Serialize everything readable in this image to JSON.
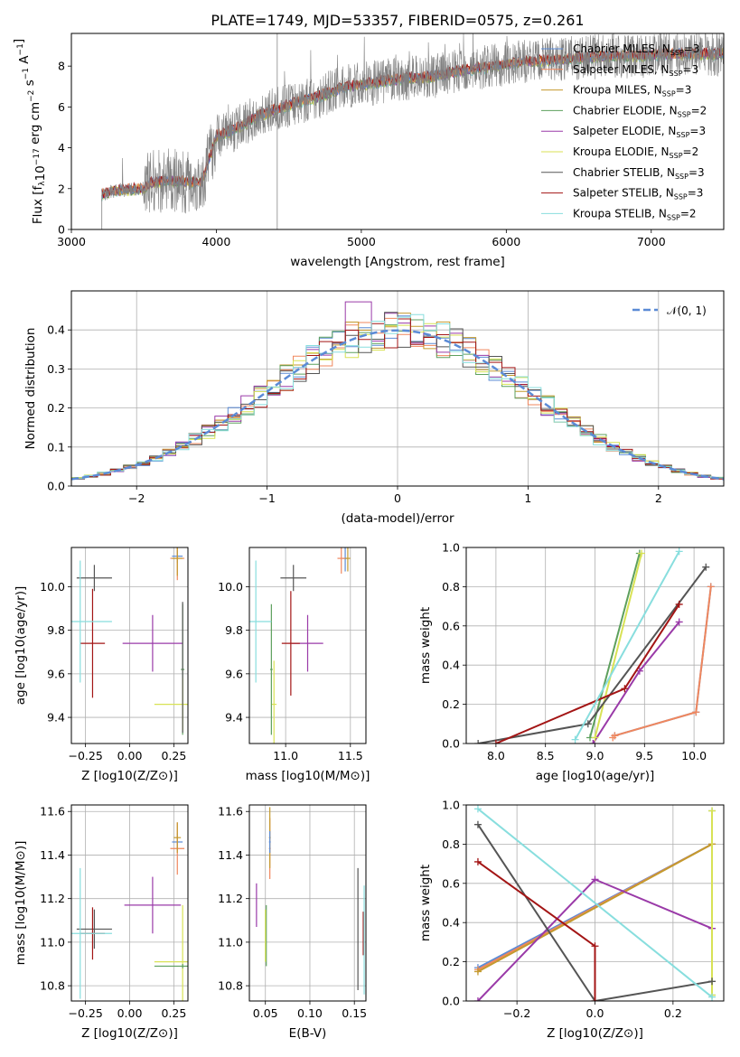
{
  "title": "PLATE=1749, MJD=53357, FIBERID=0575, z=0.261",
  "series": [
    {
      "name": "Chabrier MILES, N_SSP=3",
      "color": "#5b8bd6"
    },
    {
      "name": "Salpeter MILES, N_SSP=3",
      "color": "#f0875d"
    },
    {
      "name": "Kroupa MILES, N_SSP=3",
      "color": "#c49a2e"
    },
    {
      "name": "Chabrier ELODIE, N_SSP=2",
      "color": "#5da05d"
    },
    {
      "name": "Salpeter ELODIE, N_SSP=3",
      "color": "#9a3aa8"
    },
    {
      "name": "Kroupa ELODIE, N_SSP=2",
      "color": "#d8e255"
    },
    {
      "name": "Chabrier STELIB, N_SSP=3",
      "color": "#555555"
    },
    {
      "name": "Salpeter STELIB, N_SSP=3",
      "color": "#a31515"
    },
    {
      "name": "Kroupa STELIB, N_SSP=2",
      "color": "#88dede"
    }
  ],
  "legend": {
    "spectrum": [
      {
        "base": "Chabrier MILES, N",
        "sub": "SSP",
        "tail": "=3"
      },
      {
        "base": "Salpeter MILES, N",
        "sub": "SSP",
        "tail": "=3"
      },
      {
        "base": "Kroupa MILES, N",
        "sub": "SSP",
        "tail": "=3"
      },
      {
        "base": "Chabrier ELODIE, N",
        "sub": "SSP",
        "tail": "=2"
      },
      {
        "base": "Salpeter ELODIE, N",
        "sub": "SSP",
        "tail": "=3"
      },
      {
        "base": "Kroupa ELODIE, N",
        "sub": "SSP",
        "tail": "=2"
      },
      {
        "base": "Chabrier STELIB, N",
        "sub": "SSP",
        "tail": "=3"
      },
      {
        "base": "Salpeter STELIB, N",
        "sub": "SSP",
        "tail": "=3"
      },
      {
        "base": "Kroupa STELIB, N",
        "sub": "SSP",
        "tail": "=2"
      }
    ],
    "normal": "𝒩(0, 1)",
    "placement": "top-right"
  },
  "chart_data": [
    {
      "id": "spectrum",
      "type": "line",
      "grid": false,
      "xlabel": "wavelength [Angstrom, rest frame]",
      "ylabel": "Flux [f_λ 10^-17 erg cm^-2 s^-1 A^-1]",
      "xlim": [
        3000,
        7500
      ],
      "ylim": [
        0,
        9.6
      ],
      "xticks": [
        "3000",
        "4000",
        "5000",
        "6000",
        "7000"
      ],
      "yticks": [
        "0",
        "2",
        "4",
        "6",
        "8"
      ],
      "observed_color": "#808080",
      "data_start": 3210,
      "data_end": 7500,
      "continuum_x": [
        3210,
        3300,
        3500,
        3550,
        3700,
        3900,
        4000,
        4100,
        4300,
        4500,
        4700,
        4900,
        5100,
        5300,
        5500,
        5700,
        5900,
        6100,
        6300,
        6500,
        6700,
        6900,
        7100,
        7300,
        7500
      ],
      "continuum_y": [
        1.7,
        1.9,
        2.0,
        2.3,
        2.4,
        2.3,
        4.6,
        4.8,
        5.6,
        6.1,
        6.5,
        7.0,
        7.2,
        7.4,
        7.5,
        7.8,
        8.0,
        8.2,
        8.3,
        8.4,
        8.5,
        8.5,
        8.6,
        8.6,
        8.6
      ],
      "vline_x": 4420
    },
    {
      "id": "residuals",
      "type": "histogram",
      "grid": true,
      "xlabel": "(data-model)/error",
      "ylabel": "Normed distribution",
      "xlim": [
        -2.5,
        2.5
      ],
      "ylim": [
        0,
        0.5
      ],
      "xticks": [
        "−2",
        "−1",
        "0",
        "1",
        "2"
      ],
      "yticks": [
        "0.0",
        "0.1",
        "0.2",
        "0.3",
        "0.4"
      ],
      "bin_width": 0.1
    },
    {
      "id": "age_vs_Z",
      "type": "scatter",
      "grid": true,
      "xlabel": "Z [log10(Z/Z⊙)]",
      "ylabel": "age [log10(age/yr)]",
      "xlim": [
        -0.33,
        0.33
      ],
      "ylim": [
        9.28,
        10.18
      ],
      "xticks": [
        "−0.25",
        "0.00",
        "0.25"
      ],
      "yticks": [
        "9.4",
        "9.6",
        "9.8",
        "10.0"
      ],
      "points": [
        {
          "s": 0,
          "x": 0.27,
          "y": 10.14,
          "xe": 0.03,
          "ye": 0.03
        },
        {
          "s": 1,
          "x": 0.27,
          "y": 10.13,
          "xe": 0.04,
          "ye": 0.1
        },
        {
          "s": 2,
          "x": 0.27,
          "y": 10.13,
          "xe": 0.03,
          "ye": 0.08
        },
        {
          "s": 3,
          "x": 0.3,
          "y": 9.62,
          "xe": 0.01,
          "ye": 0.3
        },
        {
          "s": 4,
          "x": 0.13,
          "y": 9.74,
          "xe": 0.17,
          "ye": 0.13
        },
        {
          "s": 5,
          "x": 0.3,
          "y": 9.46,
          "xe": 0.16,
          "ye": 0.12
        },
        {
          "s": 6,
          "x": -0.2,
          "y": 10.04,
          "xe": 0.1,
          "ye": 0.06
        },
        {
          "s": 6,
          "x": 0.3,
          "y": 9.63,
          "xe": 0.0,
          "ye": 0.3
        },
        {
          "s": 7,
          "x": -0.21,
          "y": 9.74,
          "xe": 0.07,
          "ye": 0.25
        },
        {
          "s": 8,
          "x": -0.28,
          "y": 9.84,
          "xe": 0.18,
          "ye": 0.28
        }
      ]
    },
    {
      "id": "age_vs_mass",
      "type": "scatter",
      "grid": true,
      "xlabel": "mass [log10(M/M⊙)]",
      "ylabel": "",
      "xlim": [
        10.72,
        11.62
      ],
      "ylim": [
        9.28,
        10.18
      ],
      "xticks": [
        "11.0",
        "11.5"
      ],
      "yticks": [
        "9.4",
        "9.6",
        "9.8",
        "10.0"
      ],
      "points": [
        {
          "s": 0,
          "x": 11.46,
          "y": 10.13,
          "xe": 0.02,
          "ye": 0.06
        },
        {
          "s": 1,
          "x": 11.43,
          "y": 10.13,
          "xe": 0.03,
          "ye": 0.07
        },
        {
          "s": 2,
          "x": 11.48,
          "y": 10.13,
          "xe": 0.02,
          "ye": 0.06
        },
        {
          "s": 4,
          "x": 11.17,
          "y": 9.74,
          "xe": 0.12,
          "ye": 0.13
        },
        {
          "s": 5,
          "x": 10.91,
          "y": 9.46,
          "xe": 0.02,
          "ye": 0.2
        },
        {
          "s": 3,
          "x": 10.89,
          "y": 9.62,
          "xe": 0.01,
          "ye": 0.3
        },
        {
          "s": 6,
          "x": 11.06,
          "y": 10.04,
          "xe": 0.1,
          "ye": 0.06
        },
        {
          "s": 7,
          "x": 11.04,
          "y": 9.74,
          "xe": 0.07,
          "ye": 0.24
        },
        {
          "s": 8,
          "x": 10.77,
          "y": 9.84,
          "xe": 0.12,
          "ye": 0.28
        }
      ]
    },
    {
      "id": "massweight_vs_age",
      "type": "line",
      "grid": true,
      "xlabel": "age [log10(age/yr)]",
      "ylabel": "mass weight",
      "xlim": [
        7.7,
        10.3
      ],
      "ylim": [
        0,
        1
      ],
      "xticks": [
        "8.0",
        "8.5",
        "9.0",
        "9.5",
        "10.0"
      ],
      "yticks": [
        "0.0",
        "0.2",
        "0.4",
        "0.6",
        "0.8",
        "1.0"
      ],
      "lines": [
        {
          "s": 0,
          "x": [
            9.2,
            10.02,
            10.17
          ],
          "y": [
            0.04,
            0.16,
            0.8
          ]
        },
        {
          "s": 1,
          "x": 9.18,
          "y": 0.03
        },
        {
          "s": 1,
          "x": [
            9.2,
            10.02,
            10.17
          ],
          "y": [
            0.04,
            0.16,
            0.8
          ]
        },
        {
          "s": 3,
          "x": [
            8.95,
            9.45
          ],
          "y": [
            0.03,
            0.97
          ]
        },
        {
          "s": 4,
          "x": [
            8.98,
            9.45,
            9.85
          ],
          "y": [
            0.0,
            0.37,
            0.62
          ]
        },
        {
          "s": 5,
          "x": [
            9.0,
            9.47
          ],
          "y": [
            0.03,
            0.97
          ]
        },
        {
          "s": 6,
          "x": [
            7.82,
            8.93,
            10.12
          ],
          "y": [
            0.0,
            0.1,
            0.9
          ]
        },
        {
          "s": 7,
          "x": [
            8.0,
            9.3,
            9.85
          ],
          "y": [
            0.0,
            0.28,
            0.71
          ]
        },
        {
          "s": 8,
          "x": [
            8.8,
            9.85
          ],
          "y": [
            0.02,
            0.98
          ]
        }
      ]
    },
    {
      "id": "mass_vs_Z",
      "type": "scatter",
      "grid": true,
      "xlabel": "Z [log10(Z/Z⊙)]",
      "ylabel": "mass [log10(M/M⊙)]",
      "xlim": [
        -0.33,
        0.33
      ],
      "ylim": [
        10.73,
        11.63
      ],
      "xticks": [
        "−0.25",
        "0.00",
        "0.25"
      ],
      "yticks": [
        "10.8",
        "11.0",
        "11.2",
        "11.4",
        "11.6"
      ],
      "points": [
        {
          "s": 0,
          "x": 0.27,
          "y": 11.46,
          "xe": 0.03,
          "ye": 0.04
        },
        {
          "s": 1,
          "x": 0.27,
          "y": 11.43,
          "xe": 0.04,
          "ye": 0.12
        },
        {
          "s": 2,
          "x": 0.27,
          "y": 11.48,
          "xe": 0.02,
          "ye": 0.07
        },
        {
          "s": 4,
          "x": 0.13,
          "y": 11.17,
          "xe": 0.16,
          "ye": 0.13
        },
        {
          "s": 5,
          "x": 0.3,
          "y": 10.91,
          "xe": 0.16,
          "ye": 0.26
        },
        {
          "s": 3,
          "x": 0.3,
          "y": 10.89,
          "xe": 0.16,
          "ye": 0.01
        },
        {
          "s": 6,
          "x": -0.2,
          "y": 11.06,
          "xe": 0.1,
          "ye": 0.09
        },
        {
          "s": 7,
          "x": -0.21,
          "y": 11.04,
          "xe": 0.07,
          "ye": 0.12
        },
        {
          "s": 8,
          "x": -0.28,
          "y": 11.04,
          "xe": 0.18,
          "ye": 0.3
        }
      ]
    },
    {
      "id": "mass_vs_EBV",
      "type": "scatter",
      "grid": true,
      "xlabel": "E(B-V)",
      "ylabel": "",
      "xlim": [
        0.032,
        0.163
      ],
      "ylim": [
        10.73,
        11.63
      ],
      "xticks": [
        "0.05",
        "0.10",
        "0.15"
      ],
      "yticks": [
        "10.8",
        "11.0",
        "11.2",
        "11.4",
        "11.6"
      ],
      "points": [
        {
          "s": 1,
          "x": 0.055,
          "y": 11.43,
          "xe": 0.001,
          "ye": 0.14
        },
        {
          "s": 2,
          "x": 0.055,
          "y": 11.48,
          "xe": 0.001,
          "ye": 0.14
        },
        {
          "s": 0,
          "x": 0.055,
          "y": 11.46,
          "xe": 0.001,
          "ye": 0.05
        },
        {
          "s": 4,
          "x": 0.04,
          "y": 11.17,
          "xe": 0.0,
          "ye": 0.1
        },
        {
          "s": 3,
          "x": 0.051,
          "y": 11.03,
          "xe": 0.0,
          "ye": 0.14
        },
        {
          "s": 5,
          "x": 0.05,
          "y": 11.03,
          "xe": 0.0,
          "ye": 0.12
        },
        {
          "s": 6,
          "x": 0.154,
          "y": 11.06,
          "xe": 0.0,
          "ye": 0.28
        },
        {
          "s": 7,
          "x": 0.16,
          "y": 11.04,
          "xe": 0.0,
          "ye": 0.1
        },
        {
          "s": 8,
          "x": 0.161,
          "y": 11.01,
          "xe": 0.0,
          "ye": 0.25
        }
      ]
    },
    {
      "id": "massweight_vs_Z",
      "type": "line",
      "grid": true,
      "xlabel": "Z [log10(Z/Z⊙)]",
      "ylabel": "mass weight",
      "xlim": [
        -0.33,
        0.33
      ],
      "ylim": [
        0,
        1
      ],
      "xticks": [
        "−0.2",
        "0.0",
        "0.2"
      ],
      "yticks": [
        "0.0",
        "0.2",
        "0.4",
        "0.6",
        "0.8",
        "1.0"
      ],
      "lines": [
        {
          "s": 0,
          "x": [
            -0.3,
            0.3
          ],
          "y": [
            0.17,
            0.8
          ]
        },
        {
          "s": 1,
          "x": [
            -0.3,
            0.3
          ],
          "y": [
            0.16,
            0.8
          ]
        },
        {
          "s": 2,
          "x": [
            -0.3,
            0.3
          ],
          "y": [
            0.15,
            0.8
          ]
        },
        {
          "s": 3,
          "x": [
            0.3,
            0.3
          ],
          "y": [
            0.03,
            0.97
          ]
        },
        {
          "s": 4,
          "x": [
            -0.3,
            0.0,
            0.3
          ],
          "y": [
            0.0,
            0.62,
            0.37
          ]
        },
        {
          "s": 5,
          "x": [
            0.3,
            0.3
          ],
          "y": [
            0.03,
            0.97
          ]
        },
        {
          "s": 6,
          "x": [
            -0.3,
            0.0,
            0.3
          ],
          "y": [
            0.9,
            0.0,
            0.1
          ]
        },
        {
          "s": 7,
          "x": [
            -0.3,
            0.0,
            0.0
          ],
          "y": [
            0.71,
            0.28,
            0.0
          ]
        },
        {
          "s": 8,
          "x": [
            -0.3,
            0.3
          ],
          "y": [
            0.98,
            0.02
          ]
        }
      ]
    }
  ]
}
